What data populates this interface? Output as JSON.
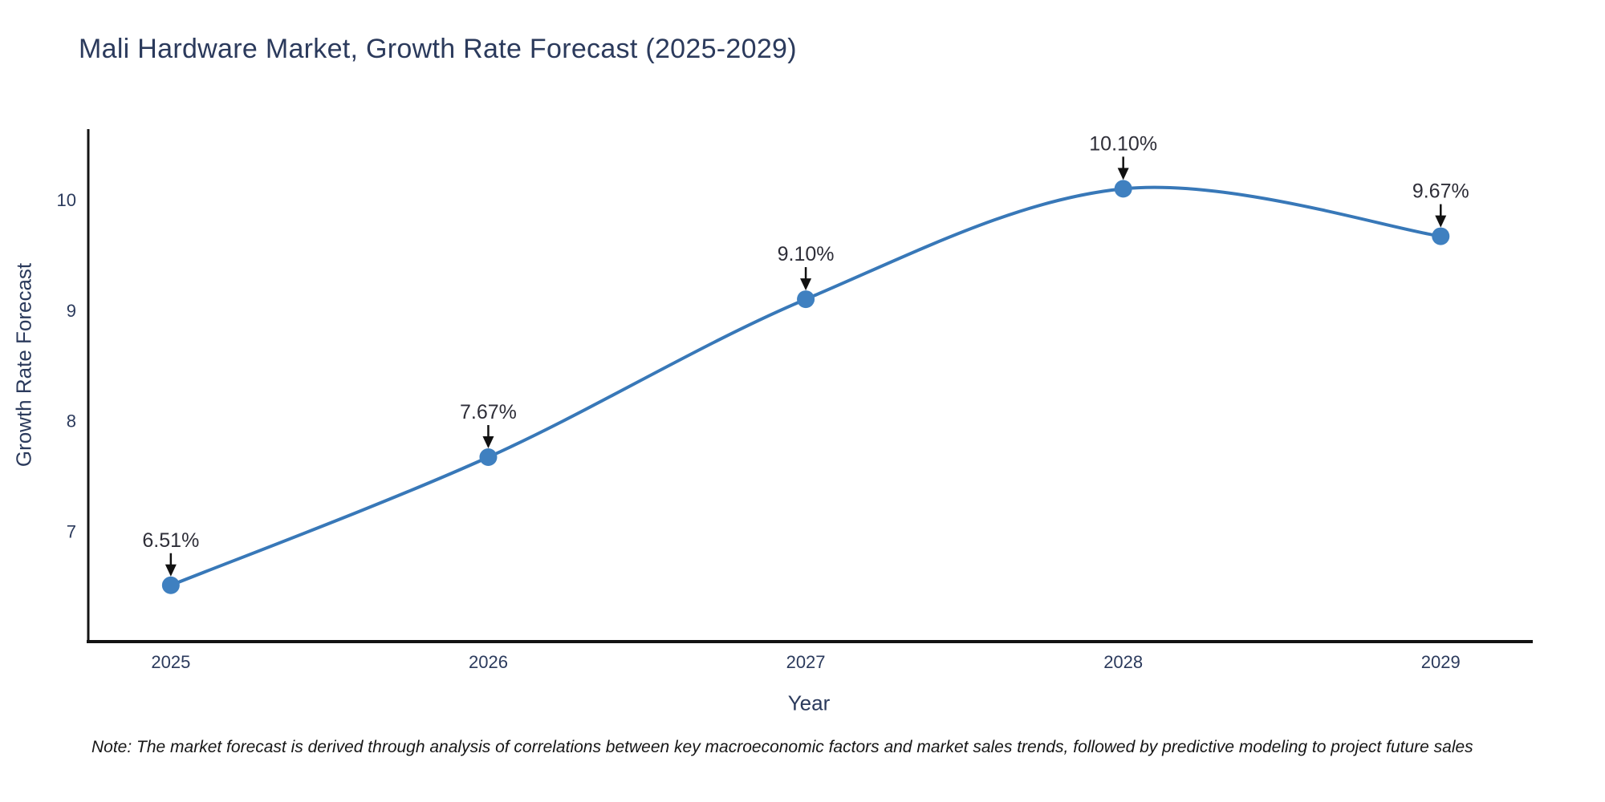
{
  "title": "Mali Hardware Market, Growth Rate Forecast (2025-2029)",
  "note": "Note: The market forecast is derived through analysis of correlations between key macroeconomic factors and market sales trends, followed by predictive modeling to project future sales",
  "chart_data": {
    "type": "line",
    "title": "Mali Hardware Market, Growth Rate Forecast (2025-2029)",
    "xlabel": "Year",
    "ylabel": "Growth Rate Forecast",
    "x": [
      2025,
      2026,
      2027,
      2028,
      2029
    ],
    "values": [
      6.51,
      7.67,
      9.1,
      10.1,
      9.67
    ],
    "point_labels": [
      "6.51%",
      "7.67%",
      "9.10%",
      "10.10%",
      "9.67%"
    ],
    "xticks": [
      2025,
      2026,
      2027,
      2028,
      2029
    ],
    "xtick_labels": [
      "2025",
      "2026",
      "2027",
      "2028",
      "2029"
    ],
    "yticks": [
      7,
      8,
      9,
      10
    ],
    "ytick_labels": [
      "7",
      "8",
      "9",
      "10"
    ],
    "xlim": [
      2024.74,
      2029.29
    ],
    "ylim": [
      6.0,
      10.64
    ],
    "line_shape": "spline",
    "grid": false,
    "legend": "none",
    "annotations_have_arrows": true,
    "colors": {
      "line": "#3878b8",
      "marker": "#3f80c0",
      "axis": "#141414",
      "tick_text": "#2b3a5c",
      "annotation_text": "#2e2e38",
      "arrow": "#111111",
      "title_text": "#2b3a5c",
      "background": "#ffffff"
    }
  }
}
